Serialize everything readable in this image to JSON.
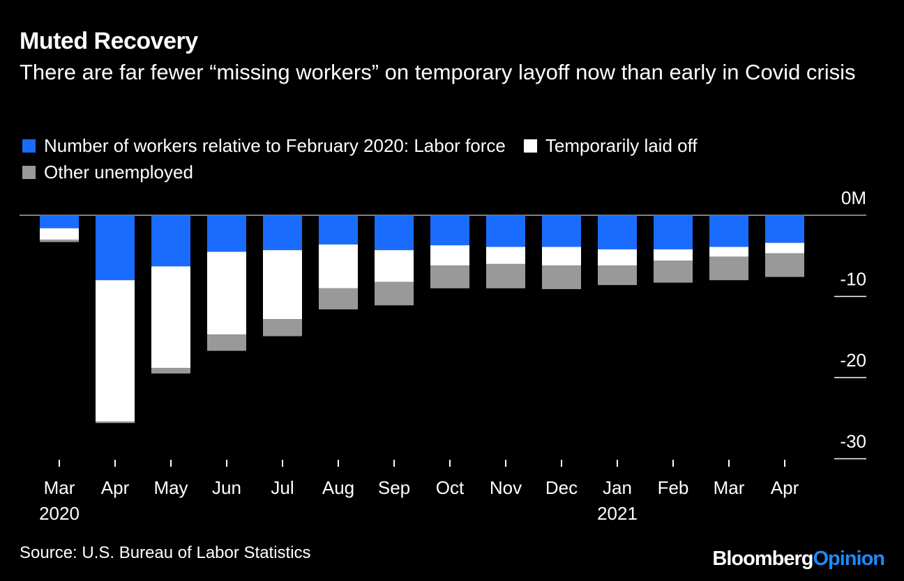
{
  "title": "Muted Recovery",
  "subtitle": "There are far fewer “missing workers” on temporary layoff now than early in Covid crisis",
  "source": "Source: U.S. Bureau of Labor Statistics",
  "brand": {
    "part1": "Bloomberg",
    "part2": "Opinion"
  },
  "colors": {
    "labor_force": "#1a6cff",
    "temporarily_laid_off": "#ffffff",
    "other_unemployed": "#999999",
    "background": "#000000"
  },
  "legend": [
    {
      "label": "Number of workers relative to February 2020: Labor force",
      "color": "#1a6cff"
    },
    {
      "label": "Temporarily laid off",
      "color": "#ffffff"
    },
    {
      "label": "Other unemployed",
      "color": "#999999"
    }
  ],
  "chart_data": {
    "type": "bar",
    "stacked": true,
    "categories": [
      "Mar",
      "Apr",
      "May",
      "Jun",
      "Jul",
      "Aug",
      "Sep",
      "Oct",
      "Nov",
      "Dec",
      "Jan",
      "Feb",
      "Mar",
      "Apr"
    ],
    "year_labels": [
      {
        "category_index": 0,
        "label": "2020"
      },
      {
        "category_index": 10,
        "label": "2021"
      }
    ],
    "series": [
      {
        "name": "Number of workers relative to February 2020: Labor force",
        "values": [
          -1.6,
          -8.0,
          -6.3,
          -4.5,
          -4.3,
          -3.6,
          -4.3,
          -3.7,
          -3.9,
          -3.9,
          -4.2,
          -4.2,
          -3.9,
          -3.4
        ]
      },
      {
        "name": "Temporarily laid off",
        "values": [
          -1.4,
          -17.4,
          -12.5,
          -10.2,
          -8.5,
          -5.4,
          -3.9,
          -2.5,
          -2.1,
          -2.3,
          -2.0,
          -1.4,
          -1.2,
          -1.3
        ]
      },
      {
        "name": "Other unemployed",
        "values": [
          -0.3,
          -0.2,
          -0.7,
          -2.0,
          -2.1,
          -2.6,
          -2.9,
          -2.8,
          -3.0,
          -2.9,
          -2.4,
          -2.7,
          -2.9,
          -2.9
        ]
      }
    ],
    "y_ticks": [
      {
        "value": 0,
        "label": "0M"
      },
      {
        "value": -10,
        "label": "-10"
      },
      {
        "value": -20,
        "label": "-20"
      },
      {
        "value": -30,
        "label": "-30"
      }
    ],
    "ylim": [
      -30,
      0
    ],
    "xlabel": "",
    "ylabel": "",
    "legend_position": "top"
  }
}
